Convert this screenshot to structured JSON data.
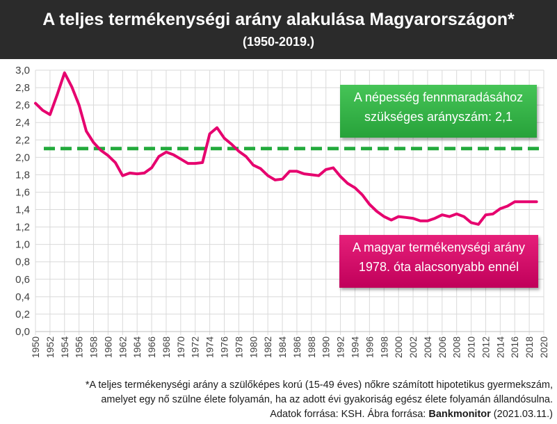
{
  "header": {
    "title": "A teljes termékenységi arány alakulása Magyarországon*",
    "subtitle": "(1950-2019.)"
  },
  "callouts": {
    "green": {
      "line1": "A népesség fennmaradásához",
      "line2": "szükséges arányszám: 2,1",
      "color": "#2fb043"
    },
    "pink": {
      "line1": "A magyar termékenységi arány",
      "line2": "1978. óta alacsonyabb ennél",
      "color": "#d4006a"
    }
  },
  "footnote": {
    "line1": "*A teljes termékenységi arány a szülőképes korú (15-49 éves) nőkre számított hipotetikus gyermekszám,",
    "line2": "amelyet egy nő szülne élete folyamán, ha az adott évi gyakoriság egész élete folyamán állandósulna.",
    "source_prefix": "Adatok forrása: KSH. Ábra forrása: ",
    "source_brand": "Bankmonitor",
    "source_date": " (2021.03.11.)"
  },
  "chart_data": {
    "type": "line",
    "x": [
      1950,
      1951,
      1952,
      1953,
      1954,
      1955,
      1956,
      1957,
      1958,
      1959,
      1960,
      1961,
      1962,
      1963,
      1964,
      1965,
      1966,
      1967,
      1968,
      1969,
      1970,
      1971,
      1972,
      1973,
      1974,
      1975,
      1976,
      1977,
      1978,
      1979,
      1980,
      1981,
      1982,
      1983,
      1984,
      1985,
      1986,
      1987,
      1988,
      1989,
      1990,
      1991,
      1992,
      1993,
      1994,
      1995,
      1996,
      1997,
      1998,
      1999,
      2000,
      2001,
      2002,
      2003,
      2004,
      2005,
      2006,
      2007,
      2008,
      2009,
      2010,
      2011,
      2012,
      2013,
      2014,
      2015,
      2016,
      2017,
      2018,
      2019
    ],
    "series": [
      {
        "color": "#e6006e",
        "values": [
          2.62,
          2.54,
          2.49,
          2.72,
          2.97,
          2.81,
          2.6,
          2.3,
          2.17,
          2.08,
          2.02,
          1.94,
          1.79,
          1.82,
          1.81,
          1.82,
          1.88,
          2.01,
          2.06,
          2.03,
          1.98,
          1.93,
          1.93,
          1.94,
          2.27,
          2.34,
          2.22,
          2.15,
          2.07,
          2.01,
          1.91,
          1.87,
          1.79,
          1.74,
          1.75,
          1.84,
          1.84,
          1.81,
          1.8,
          1.79,
          1.86,
          1.88,
          1.78,
          1.7,
          1.65,
          1.57,
          1.46,
          1.38,
          1.32,
          1.28,
          1.32,
          1.31,
          1.3,
          1.27,
          1.27,
          1.3,
          1.34,
          1.32,
          1.35,
          1.32,
          1.25,
          1.23,
          1.34,
          1.35,
          1.41,
          1.44,
          1.49,
          1.49,
          1.49,
          1.49
        ]
      }
    ],
    "reference_line": {
      "value": 2.1,
      "color": "#22aa3c"
    },
    "x_ticks": [
      "1950",
      "1952",
      "1954",
      "1956",
      "1958",
      "1960",
      "1962",
      "1964",
      "1966",
      "1968",
      "1970",
      "1972",
      "1974",
      "1976",
      "1978",
      "1980",
      "1982",
      "1984",
      "1986",
      "1988",
      "1990",
      "1992",
      "1994",
      "1996",
      "1998",
      "2000",
      "2002",
      "2004",
      "2006",
      "2008",
      "2010",
      "2012",
      "2014",
      "2016",
      "2018",
      "2020"
    ],
    "y_ticks": [
      "0,0",
      "0,2",
      "0,4",
      "0,6",
      "0,8",
      "1,0",
      "1,2",
      "1,4",
      "1,6",
      "1,8",
      "2,0",
      "2,2",
      "2,4",
      "2,6",
      "2,8",
      "3,0"
    ],
    "xlim": [
      1950,
      2020
    ],
    "ylim": [
      0,
      3.0
    ],
    "grid": true
  }
}
